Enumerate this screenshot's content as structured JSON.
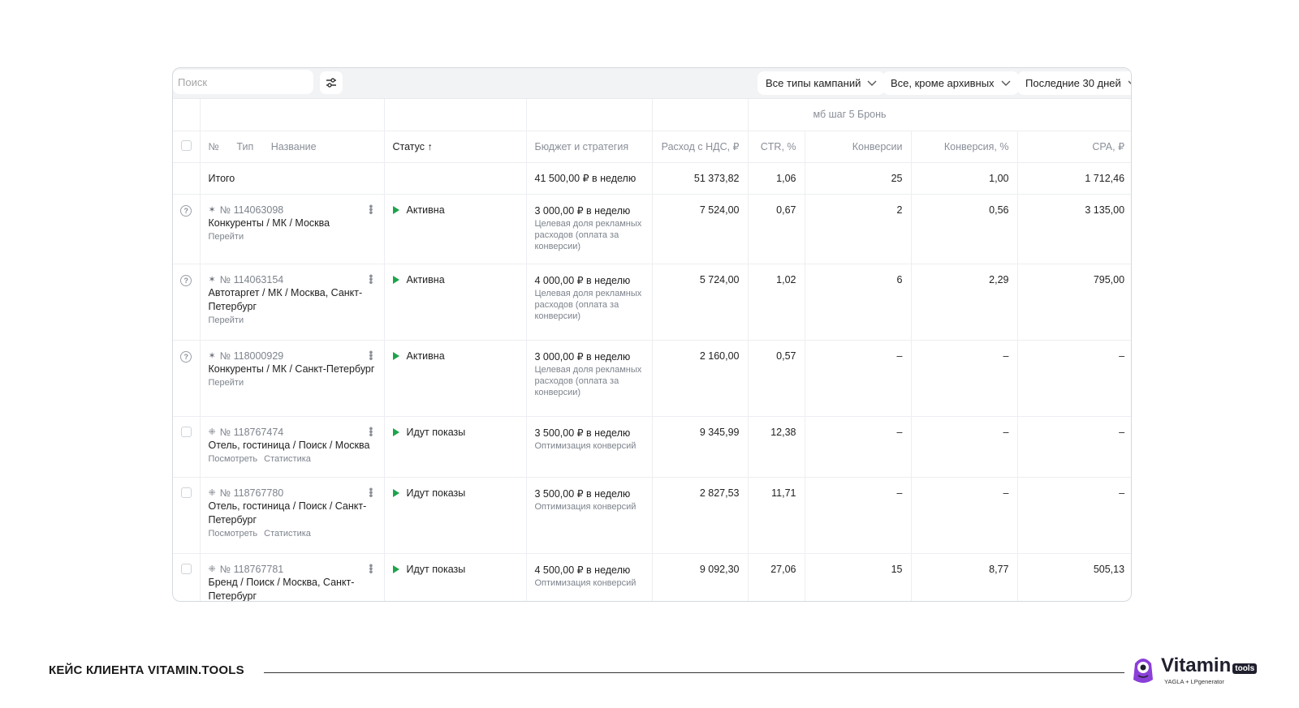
{
  "toolbar": {
    "search_placeholder": "Поиск",
    "campaign_types": "Все типы кампаний",
    "archive_filter": "Все, кроме архивных",
    "period": "Последние 30 дней"
  },
  "table": {
    "group_header": "мб шаг 5 Бронь",
    "headers": {
      "num": "№",
      "type": "Тип",
      "name": "Название",
      "status": "Статус ↑",
      "budget": "Бюджет и стратегия",
      "spend": "Расход с НДС, ₽",
      "ctr": "CTR, %",
      "conv": "Конверсии",
      "conv_rate": "Конверсия, %",
      "cpa": "CPA, ₽"
    },
    "total": {
      "label": "Итого",
      "budget": "41 500,00 ₽ в неделю",
      "spend": "51 373,82",
      "ctr": "1,06",
      "conv": "25",
      "conv_rate": "1,00",
      "cpa": "1 712,46"
    },
    "rows": [
      {
        "id": "№ 114063098",
        "name": "Конкуренты / МК / Москва",
        "link1": "Перейти",
        "link2": "",
        "status": "Активна",
        "budget": "3 000,00 ₽ в неделю",
        "strategy": "Целевая доля рекламных расходов (оплата за конверсии)",
        "spend": "7 524,00",
        "ctr": "0,67",
        "conv": "2",
        "conv_rate": "0,56",
        "cpa": "3 135,00"
      },
      {
        "id": "№ 114063154",
        "name": "Автотаргет / МК / Москва, Санкт-Петербург",
        "link1": "Перейти",
        "link2": "",
        "status": "Активна",
        "budget": "4 000,00 ₽ в неделю",
        "strategy": "Целевая доля рекламных расходов (оплата за конверсии)",
        "spend": "5 724,00",
        "ctr": "1,02",
        "conv": "6",
        "conv_rate": "2,29",
        "cpa": "795,00"
      },
      {
        "id": "№ 118000929",
        "name": "Конкуренты / МК / Санкт-Петербург",
        "link1": "Перейти",
        "link2": "",
        "status": "Активна",
        "budget": "3 000,00 ₽ в неделю",
        "strategy": "Целевая доля рекламных расходов (оплата за конверсии)",
        "spend": "2 160,00",
        "ctr": "0,57",
        "conv": "–",
        "conv_rate": "–",
        "cpa": "–"
      },
      {
        "id": "№ 118767474",
        "name": "Отель, гостиница / Поиск / Москва",
        "link1": "Посмотреть",
        "link2": "Статистика",
        "status": "Идут показы",
        "budget": "3 500,00 ₽ в неделю",
        "strategy": "Оптимизация конверсий",
        "spend": "9 345,99",
        "ctr": "12,38",
        "conv": "–",
        "conv_rate": "–",
        "cpa": "–"
      },
      {
        "id": "№ 118767780",
        "name": "Отель, гостиница / Поиск / Санкт-Петербург",
        "link1": "Посмотреть",
        "link2": "Статистика",
        "status": "Идут показы",
        "budget": "3 500,00 ₽ в неделю",
        "strategy": "Оптимизация конверсий",
        "spend": "2 827,53",
        "ctr": "11,71",
        "conv": "–",
        "conv_rate": "–",
        "cpa": "–"
      },
      {
        "id": "№ 118767781",
        "name": "Бренд / Поиск / Москва, Санкт-Петербург",
        "link1": "",
        "link2": "",
        "status": "Идут показы",
        "budget": "4 500,00 ₽ в неделю",
        "strategy": "Оптимизация конверсий",
        "spend": "9 092,30",
        "ctr": "27,06",
        "conv": "15",
        "conv_rate": "8,77",
        "cpa": "505,13"
      }
    ]
  },
  "footer": {
    "caption": "КЕЙС КЛИЕНТА VITAMIN.TOOLS",
    "logo_word": "Vitamin",
    "logo_badge": "tools",
    "logo_sub": "YAGLA + LPgenerator"
  },
  "colors": {
    "active": "#1ea34b",
    "accent_logo": "#8b3fd9"
  }
}
